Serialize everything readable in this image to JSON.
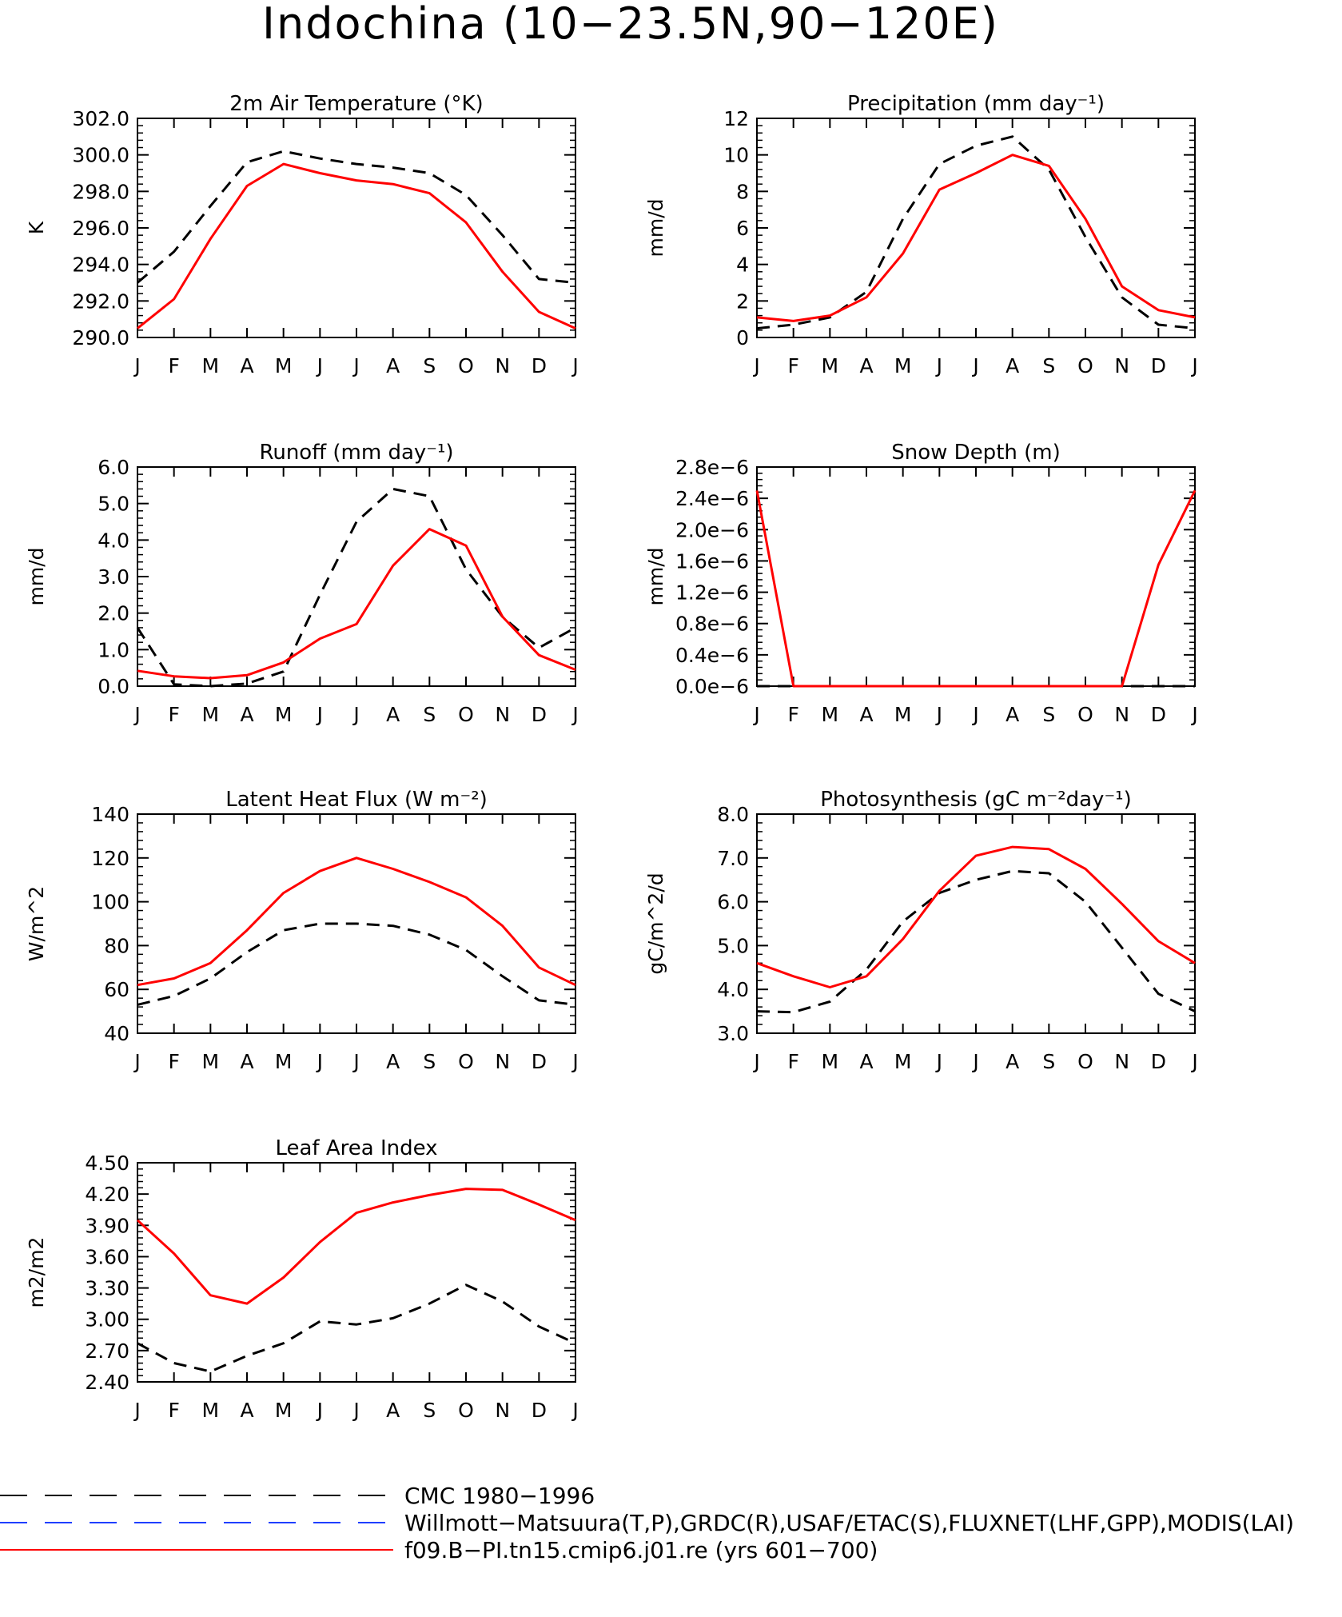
{
  "main_title": "Indochina (10−23.5N,90−120E)",
  "months": [
    "J",
    "F",
    "M",
    "A",
    "M",
    "J",
    "J",
    "A",
    "S",
    "O",
    "N",
    "D",
    "J"
  ],
  "colors": {
    "obs": "#000000",
    "obs_alt": "#1f3fff",
    "model": "#ff0000"
  },
  "legend": [
    {
      "label": "CMC 1980−1996",
      "color": "#000000",
      "style": "dashed"
    },
    {
      "label": "Willmott−Matsuura(T,P),GRDC(R),USAF/ETAC(S),FLUXNET(LHF,GPP),MODIS(LAI)",
      "color": "#1f3fff",
      "style": "dashed"
    },
    {
      "label": "f09.B−PI.tn15.cmip6.j01.re (yrs 601−700)",
      "color": "#ff0000",
      "style": "solid"
    }
  ],
  "chart_data": [
    {
      "id": "temp",
      "type": "line",
      "title": "2m Air Temperature (°K)",
      "ylabel": "K",
      "ylim": [
        290,
        302
      ],
      "yticks": [
        "290.0",
        "292.0",
        "294.0",
        "296.0",
        "298.0",
        "300.0",
        "302.0"
      ],
      "series": [
        {
          "values": [
            293.0,
            294.7,
            297.2,
            299.6,
            300.2,
            299.8,
            299.5,
            299.3,
            299.0,
            297.8,
            295.6,
            293.2,
            293.0
          ],
          "style": "dashed"
        },
        {
          "values": [
            290.5,
            292.1,
            295.4,
            298.3,
            299.5,
            299.0,
            298.6,
            298.4,
            297.9,
            296.3,
            293.6,
            291.4,
            290.5
          ],
          "style": "solid"
        }
      ]
    },
    {
      "id": "precip",
      "type": "line",
      "title": "Precipitation (mm day⁻¹)",
      "ylabel": "mm/d",
      "ylim": [
        0,
        12
      ],
      "yticks": [
        "0",
        "2",
        "4",
        "6",
        "8",
        "10",
        "12"
      ],
      "series": [
        {
          "values": [
            0.5,
            0.7,
            1.1,
            2.5,
            6.5,
            9.5,
            10.5,
            11.0,
            9.2,
            5.5,
            2.2,
            0.7,
            0.5
          ],
          "style": "dashed"
        },
        {
          "values": [
            1.1,
            0.9,
            1.2,
            2.2,
            4.6,
            8.1,
            9.0,
            10.0,
            9.4,
            6.5,
            2.8,
            1.5,
            1.1
          ],
          "style": "solid"
        }
      ]
    },
    {
      "id": "runoff",
      "type": "line",
      "title": "Runoff (mm day⁻¹)",
      "ylabel": "mm/d",
      "ylim": [
        0,
        6
      ],
      "yticks": [
        "0.0",
        "1.0",
        "2.0",
        "3.0",
        "4.0",
        "5.0",
        "6.0"
      ],
      "series": [
        {
          "values": [
            1.6,
            0.05,
            0.0,
            0.07,
            0.4,
            2.5,
            4.5,
            5.4,
            5.2,
            3.2,
            1.9,
            1.05,
            1.6
          ],
          "style": "dashed"
        },
        {
          "values": [
            0.42,
            0.27,
            0.22,
            0.3,
            0.65,
            1.3,
            1.7,
            3.3,
            4.3,
            3.85,
            1.9,
            0.85,
            0.45
          ],
          "style": "solid"
        }
      ]
    },
    {
      "id": "snow",
      "type": "line",
      "title": "Snow Depth (m)",
      "ylabel": "mm/d",
      "ylim": [
        0,
        2.8
      ],
      "yticks": [
        "0.0e−6",
        "0.4e−6",
        "0.8e−6",
        "1.2e−6",
        "1.6e−6",
        "2.0e−6",
        "2.4e−6",
        "2.8e−6"
      ],
      "series": [
        {
          "values": [
            0,
            0,
            0,
            0,
            0,
            0,
            0,
            0,
            0,
            0,
            0,
            0,
            0
          ],
          "style": "dashed"
        },
        {
          "values": [
            2.5,
            0,
            0,
            0,
            0,
            0,
            0,
            0,
            0,
            0,
            0,
            1.55,
            2.5
          ],
          "style": "solid"
        }
      ]
    },
    {
      "id": "lhf",
      "type": "line",
      "title": "Latent Heat Flux (W m⁻²)",
      "ylabel": "W/m^2",
      "ylim": [
        40,
        140
      ],
      "yticks": [
        "40",
        "60",
        "80",
        "100",
        "120",
        "140"
      ],
      "series": [
        {
          "values": [
            53,
            57,
            65,
            77,
            87,
            90,
            90,
            89,
            85,
            78,
            66,
            55,
            53
          ],
          "style": "dashed"
        },
        {
          "values": [
            62,
            65,
            72,
            87,
            104,
            114,
            120,
            115,
            109,
            102,
            89,
            70,
            62
          ],
          "style": "solid"
        }
      ]
    },
    {
      "id": "photo",
      "type": "line",
      "title": "Photosynthesis (gC m⁻²day⁻¹)",
      "ylabel": "gC/m^2/d",
      "ylim": [
        3,
        8
      ],
      "yticks": [
        "3.0",
        "4.0",
        "5.0",
        "6.0",
        "7.0",
        "8.0"
      ],
      "series": [
        {
          "values": [
            3.5,
            3.48,
            3.72,
            4.45,
            5.55,
            6.2,
            6.5,
            6.7,
            6.65,
            6.0,
            4.95,
            3.9,
            3.5
          ],
          "style": "dashed"
        },
        {
          "values": [
            4.6,
            4.3,
            4.05,
            4.3,
            5.15,
            6.25,
            7.05,
            7.25,
            7.2,
            6.75,
            5.95,
            5.1,
            4.6
          ],
          "style": "solid"
        }
      ]
    },
    {
      "id": "lai",
      "type": "line",
      "title": "Leaf Area Index",
      "ylabel": "m2/m2",
      "ylim": [
        2.4,
        4.5
      ],
      "yticks": [
        "2.40",
        "2.70",
        "3.00",
        "3.30",
        "3.60",
        "3.90",
        "4.20",
        "4.50"
      ],
      "series": [
        {
          "values": [
            2.77,
            2.58,
            2.5,
            2.65,
            2.77,
            2.98,
            2.95,
            3.01,
            3.15,
            3.33,
            3.17,
            2.93,
            2.77
          ],
          "style": "dashed"
        },
        {
          "values": [
            3.95,
            3.63,
            3.23,
            3.15,
            3.4,
            3.74,
            4.02,
            4.12,
            4.19,
            4.25,
            4.24,
            4.1,
            3.95
          ],
          "style": "solid"
        }
      ]
    }
  ]
}
